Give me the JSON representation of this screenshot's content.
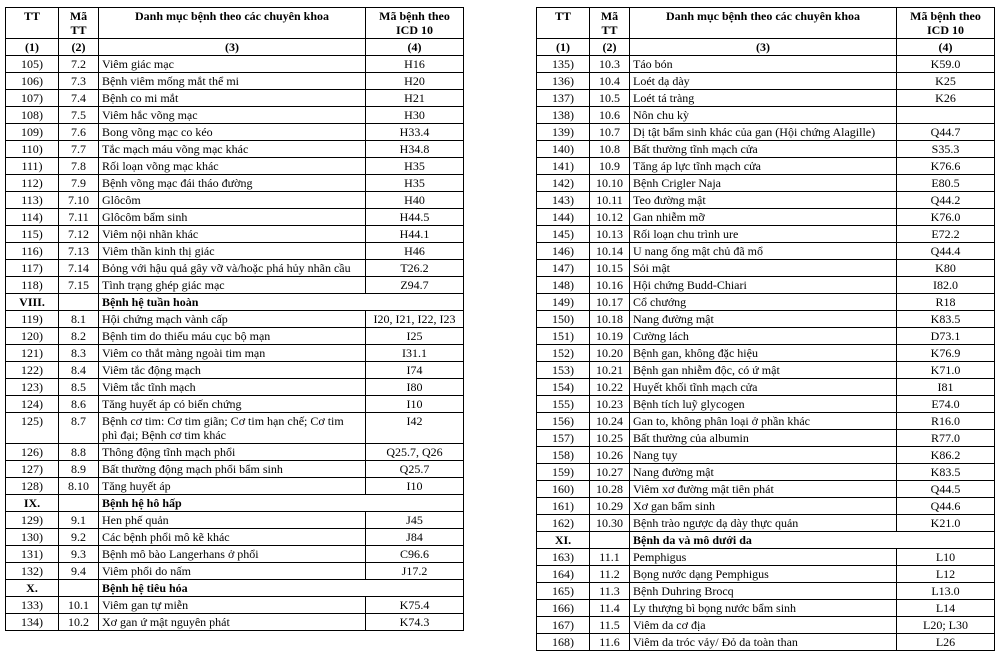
{
  "header": {
    "tt": "TT",
    "ma": "Mã TT",
    "name": "Danh mục bệnh theo các chuyên khoa",
    "icd": "Mã bệnh theo ICD 10"
  },
  "subheader": {
    "tt": "(1)",
    "ma": "(2)",
    "name": "(3)",
    "icd": "(4)"
  },
  "tables": [
    {
      "rows": [
        {
          "type": "data",
          "tt": "105)",
          "ma": "7.2",
          "name": "Viêm giác mạc",
          "icd": "H16"
        },
        {
          "type": "data",
          "tt": "106)",
          "ma": "7.3",
          "name": "Bệnh viêm mống mắt thể mi",
          "icd": "H20"
        },
        {
          "type": "data",
          "tt": "107)",
          "ma": "7.4",
          "name": "Bệnh co mi mắt",
          "icd": "H21"
        },
        {
          "type": "data",
          "tt": "108)",
          "ma": "7.5",
          "name": "Viêm hắc võng mạc",
          "icd": "H30"
        },
        {
          "type": "data",
          "tt": "109)",
          "ma": "7.6",
          "name": "Bong võng mạc co kéo",
          "icd": "H33.4"
        },
        {
          "type": "data",
          "tt": "110)",
          "ma": "7.7",
          "name": "Tắc mạch máu võng mạc khác",
          "icd": "H34.8"
        },
        {
          "type": "data",
          "tt": "111)",
          "ma": "7.8",
          "name": "Rối loạn võng mạc khác",
          "icd": "H35"
        },
        {
          "type": "data",
          "tt": "112)",
          "ma": "7.9",
          "name": "Bệnh võng mạc đái tháo đường",
          "icd": "H35"
        },
        {
          "type": "data",
          "tt": "113)",
          "ma": "7.10",
          "name": "Glôcôm",
          "icd": "H40"
        },
        {
          "type": "data",
          "tt": "114)",
          "ma": "7.11",
          "name": "Glôcôm bẩm sinh",
          "icd": "H44.5"
        },
        {
          "type": "data",
          "tt": "115)",
          "ma": "7.12",
          "name": "Viêm nội nhãn khác",
          "icd": "H44.1"
        },
        {
          "type": "data",
          "tt": "116)",
          "ma": "7.13",
          "name": "Viêm thần kinh thị giác",
          "icd": "H46"
        },
        {
          "type": "data",
          "tt": "117)",
          "ma": "7.14",
          "name": "Bỏng với hậu quả gây vỡ và/hoặc phá hủy nhãn cầu",
          "icd": "T26.2"
        },
        {
          "type": "data",
          "tt": "118)",
          "ma": "7.15",
          "name": "Tình trạng ghép giác mạc",
          "icd": "Z94.7"
        },
        {
          "type": "section",
          "tt": "VIII.",
          "ma": "",
          "name": "Bệnh hệ tuần hoàn"
        },
        {
          "type": "data",
          "tt": "119)",
          "ma": "8.1",
          "name": "Hội chứng mạch vành cấp",
          "icd": "I20, I21, I22, I23"
        },
        {
          "type": "data",
          "tt": "120)",
          "ma": "8.2",
          "name": "Bệnh tim do thiếu máu cục bộ mạn",
          "icd": "I25"
        },
        {
          "type": "data",
          "tt": "121)",
          "ma": "8.3",
          "name": "Viêm co thắt màng ngoài tim mạn",
          "icd": "I31.1"
        },
        {
          "type": "data",
          "tt": "122)",
          "ma": "8.4",
          "name": "Viêm tắc động mạch",
          "icd": "I74"
        },
        {
          "type": "data",
          "tt": "123)",
          "ma": "8.5",
          "name": "Viêm tắc tĩnh mạch",
          "icd": "I80"
        },
        {
          "type": "data",
          "tt": "124)",
          "ma": "8.6",
          "name": "Tăng huyết áp có biến chứng",
          "icd": "I10"
        },
        {
          "type": "data",
          "tt": "125)",
          "ma": "8.7",
          "name": "Bệnh cơ tim: Cơ tim giãn; Cơ tim hạn chế; Cơ tim phì đại; Bệnh cơ tim khác",
          "icd": "I42"
        },
        {
          "type": "data",
          "tt": "126)",
          "ma": "8.8",
          "name": "Thông động tĩnh mạch phổi",
          "icd": "Q25.7, Q26"
        },
        {
          "type": "data",
          "tt": "127)",
          "ma": "8.9",
          "name": "Bất thường động mạch phổi bẩm sinh",
          "icd": "Q25.7"
        },
        {
          "type": "data",
          "tt": "128)",
          "ma": "8.10",
          "name": "Tăng huyết áp",
          "icd": "I10"
        },
        {
          "type": "section",
          "tt": "IX.",
          "ma": "",
          "name": "Bệnh hệ hô hấp"
        },
        {
          "type": "data",
          "tt": "129)",
          "ma": "9.1",
          "name": "Hen phế quản",
          "icd": "J45"
        },
        {
          "type": "data",
          "tt": "130)",
          "ma": "9.2",
          "name": "Các bệnh phổi mô kẽ khác",
          "icd": "J84"
        },
        {
          "type": "data",
          "tt": "131)",
          "ma": "9.3",
          "name": "Bệnh mô bào Langerhans ở phổi",
          "icd": "C96.6"
        },
        {
          "type": "data",
          "tt": "132)",
          "ma": "9.4",
          "name": "Viêm phổi do nấm",
          "icd": "J17.2"
        },
        {
          "type": "section",
          "tt": "X.",
          "ma": "",
          "name": "Bệnh hệ tiêu hóa"
        },
        {
          "type": "data",
          "tt": "133)",
          "ma": "10.1",
          "name": "Viêm gan tự miễn",
          "icd": "K75.4"
        },
        {
          "type": "data",
          "tt": "134)",
          "ma": "10.2",
          "name": "Xơ gan ứ mật nguyên phát",
          "icd": "K74.3"
        }
      ]
    },
    {
      "rows": [
        {
          "type": "data",
          "tt": "135)",
          "ma": "10.3",
          "name": "Táo bón",
          "icd": "K59.0"
        },
        {
          "type": "data",
          "tt": "136)",
          "ma": "10.4",
          "name": "Loét dạ dày",
          "icd": "K25"
        },
        {
          "type": "data",
          "tt": "137)",
          "ma": "10.5",
          "name": "Loét tá tràng",
          "icd": "K26"
        },
        {
          "type": "data",
          "tt": "138)",
          "ma": "10.6",
          "name": "Nôn chu kỳ",
          "icd": ""
        },
        {
          "type": "data",
          "tt": "139)",
          "ma": "10.7",
          "name": "Dị tật bẩm sinh khác của gan (Hội chứng Alagille)",
          "icd": "Q44.7"
        },
        {
          "type": "data",
          "tt": "140)",
          "ma": "10.8",
          "name": "Bất thường tĩnh mạch cửa",
          "icd": "S35.3"
        },
        {
          "type": "data",
          "tt": "141)",
          "ma": "10.9",
          "name": "Tăng áp lực tĩnh mạch cửa",
          "icd": "K76.6"
        },
        {
          "type": "data",
          "tt": "142)",
          "ma": "10.10",
          "name": "Bệnh Crigler Naja",
          "icd": "E80.5"
        },
        {
          "type": "data",
          "tt": "143)",
          "ma": "10.11",
          "name": "Teo đường mật",
          "icd": "Q44.2"
        },
        {
          "type": "data",
          "tt": "144)",
          "ma": "10.12",
          "name": "Gan nhiễm mỡ",
          "icd": "K76.0"
        },
        {
          "type": "data",
          "tt": "145)",
          "ma": "10.13",
          "name": "Rối loạn chu trình ure",
          "icd": "E72.2"
        },
        {
          "type": "data",
          "tt": "146)",
          "ma": "10.14",
          "name": "U nang ống mật chủ đã mổ",
          "icd": "Q44.4"
        },
        {
          "type": "data",
          "tt": "147)",
          "ma": "10.15",
          "name": "Sỏi mật",
          "icd": "K80"
        },
        {
          "type": "data",
          "tt": "148)",
          "ma": "10.16",
          "name": "Hội chứng Budd-Chiari",
          "icd": "I82.0"
        },
        {
          "type": "data",
          "tt": "149)",
          "ma": "10.17",
          "name": "Cổ chướng",
          "icd": "R18"
        },
        {
          "type": "data",
          "tt": "150)",
          "ma": "10.18",
          "name": "Nang đường mật",
          "icd": "K83.5"
        },
        {
          "type": "data",
          "tt": "151)",
          "ma": "10.19",
          "name": "Cường lách",
          "icd": "D73.1"
        },
        {
          "type": "data",
          "tt": "152)",
          "ma": "10.20",
          "name": "Bệnh gan, không đặc hiệu",
          "icd": "K76.9"
        },
        {
          "type": "data",
          "tt": "153)",
          "ma": "10.21",
          "name": "Bệnh gan nhiễm độc, có ứ mật",
          "icd": "K71.0"
        },
        {
          "type": "data",
          "tt": "154)",
          "ma": "10.22",
          "name": "Huyết khối tĩnh mạch cửa",
          "icd": "I81"
        },
        {
          "type": "data",
          "tt": "155)",
          "ma": "10.23",
          "name": "Bệnh tích luỹ glycogen",
          "icd": "E74.0"
        },
        {
          "type": "data",
          "tt": "156)",
          "ma": "10.24",
          "name": "Gan to, không phân loại ở phần khác",
          "icd": "R16.0"
        },
        {
          "type": "data",
          "tt": "157)",
          "ma": "10.25",
          "name": "Bất thường của albumin",
          "icd": "R77.0"
        },
        {
          "type": "data",
          "tt": "158)",
          "ma": "10.26",
          "name": "Nang tụy",
          "icd": "K86.2"
        },
        {
          "type": "data",
          "tt": "159)",
          "ma": "10.27",
          "name": "Nang đường mật",
          "icd": "K83.5"
        },
        {
          "type": "data",
          "tt": "160)",
          "ma": "10.28",
          "name": "Viêm xơ đường mật tiên phát",
          "icd": "Q44.5"
        },
        {
          "type": "data",
          "tt": "161)",
          "ma": "10.29",
          "name": "Xơ gan bẩm sinh",
          "icd": "Q44.6"
        },
        {
          "type": "data",
          "tt": "162)",
          "ma": "10.30",
          "name": "Bệnh trào ngược dạ dày thực quản",
          "icd": "K21.0"
        },
        {
          "type": "section",
          "tt": "XI.",
          "ma": "",
          "name": "Bệnh da và mô dưới da"
        },
        {
          "type": "data",
          "tt": "163)",
          "ma": "11.1",
          "name": "Pemphigus",
          "icd": "L10"
        },
        {
          "type": "data",
          "tt": "164)",
          "ma": "11.2",
          "name": "Bọng nước dạng Pemphigus",
          "icd": "L12"
        },
        {
          "type": "data",
          "tt": "165)",
          "ma": "11.3",
          "name": "Bệnh Duhring Brocq",
          "icd": "L13.0"
        },
        {
          "type": "data",
          "tt": "166)",
          "ma": "11.4",
          "name": "Ly thượng bì bọng nước bẩm sinh",
          "icd": "L14"
        },
        {
          "type": "data",
          "tt": "167)",
          "ma": "11.5",
          "name": "Viêm da cơ địa",
          "icd": "L20; L30"
        },
        {
          "type": "data",
          "tt": "168)",
          "ma": "11.6",
          "name": "Viêm da tróc vảy/ Đỏ da toàn than",
          "icd": "L26"
        }
      ]
    }
  ]
}
